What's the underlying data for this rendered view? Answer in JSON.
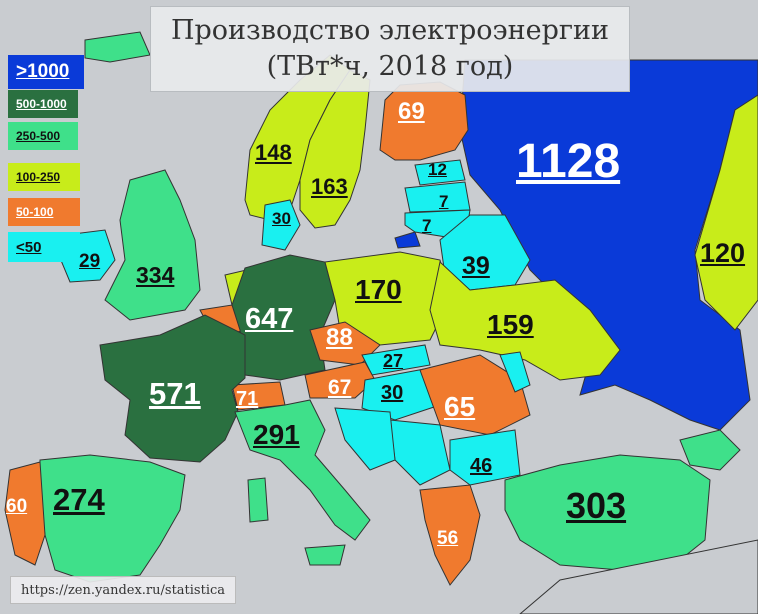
{
  "title_line1": "Производство электроэнергии",
  "title_line2": "(ТВт*ч, 2018 год)",
  "legend": [
    {
      "label": ">1000",
      "color": "#0a3ad8",
      "text_color": "#ffffff"
    },
    {
      "label": "500-1000",
      "color": "#2a7040",
      "text_color": "#ffffff"
    },
    {
      "label": "250-500",
      "color": "#3fe08a",
      "text_color": "#111111"
    },
    {
      "label": "100-250",
      "color": "#c8ec1a",
      "text_color": "#111111"
    },
    {
      "label": "50-100",
      "color": "#f07a2e",
      "text_color": "#ffffff"
    },
    {
      "label": "<50",
      "color": "#19f0f0",
      "text_color": "#111111"
    }
  ],
  "countries": [
    {
      "value": "1128",
      "bin": ">1000"
    },
    {
      "value": "148",
      "bin": "100-250"
    },
    {
      "value": "163",
      "bin": "100-250"
    },
    {
      "value": "69",
      "bin": "50-100"
    },
    {
      "value": "12",
      "bin": "<50"
    },
    {
      "value": "7",
      "bin": "<50"
    },
    {
      "value": "7",
      "bin": "<50"
    },
    {
      "value": "30",
      "bin": "<50"
    },
    {
      "value": "29",
      "bin": "<50"
    },
    {
      "value": "334",
      "bin": "250-500"
    },
    {
      "value": "647",
      "bin": "500-1000"
    },
    {
      "value": "170",
      "bin": "100-250"
    },
    {
      "value": "39",
      "bin": "<50"
    },
    {
      "value": "120",
      "bin": "100-250"
    },
    {
      "value": "88",
      "bin": "50-100"
    },
    {
      "value": "159",
      "bin": "100-250"
    },
    {
      "value": "27",
      "bin": "<50"
    },
    {
      "value": "571",
      "bin": "500-1000"
    },
    {
      "value": "67",
      "bin": "50-100"
    },
    {
      "value": "30",
      "bin": "<50"
    },
    {
      "value": "71",
      "bin": "50-100"
    },
    {
      "value": "65",
      "bin": "50-100"
    },
    {
      "value": "291",
      "bin": "250-500"
    },
    {
      "value": "46",
      "bin": "<50"
    },
    {
      "value": "274",
      "bin": "250-500"
    },
    {
      "value": "60",
      "bin": "50-100"
    },
    {
      "value": "303",
      "bin": "250-500"
    },
    {
      "value": "56",
      "bin": "50-100"
    }
  ],
  "credit": "https://zen.yandex.ru/statistica"
}
